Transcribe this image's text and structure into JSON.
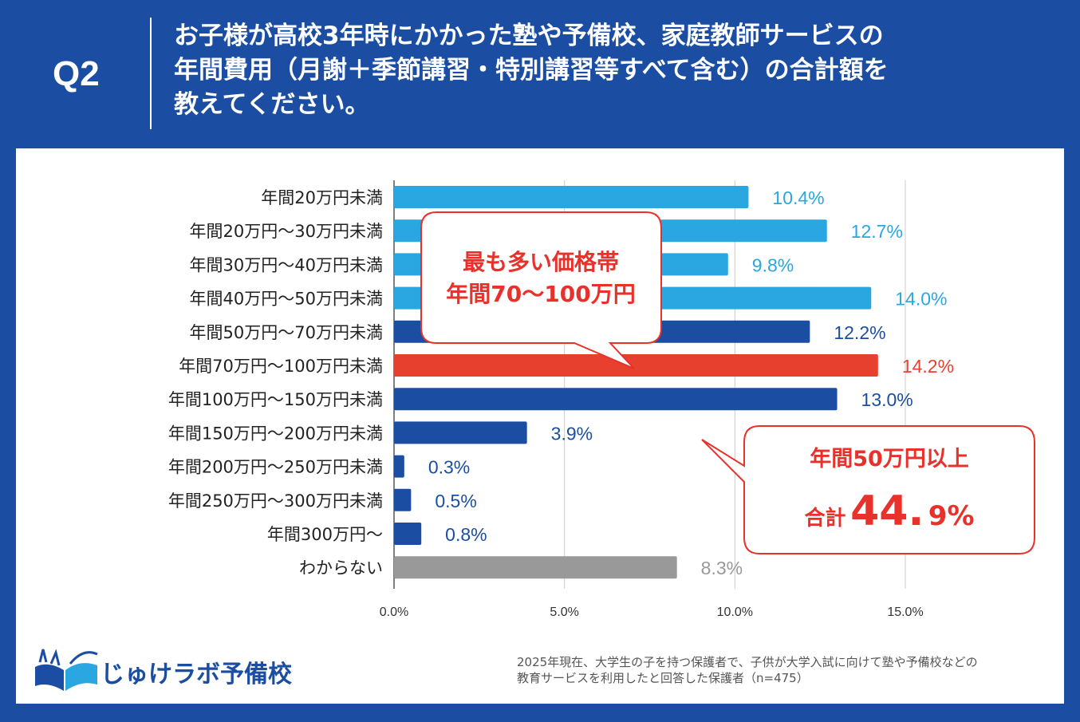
{
  "header": {
    "q_label": "Q2",
    "question_lines": [
      "お子様が高校3年時にかかった塾や予備校、家庭教師サービスの",
      "年間費用（月謝＋季節講習・特別講習等すべて含む）の合計額を",
      "教えてください。"
    ]
  },
  "colors": {
    "header_bg": "#1b4ea3",
    "light_blue": "#2aa6e0",
    "dark_blue": "#1b4ea3",
    "red": "#e8402f",
    "gray": "#999999"
  },
  "chart_data": {
    "type": "bar",
    "orientation": "horizontal",
    "categories": [
      "年間20万円未満",
      "年間20万円～30万円未満",
      "年間30万円～40万円未満",
      "年間40万円～50万円未満",
      "年間50万円～70万円未満",
      "年間70万円～100万円未満",
      "年間100万円～150万円未満",
      "年間150万円～200万円未満",
      "年間200万円～250万円未満",
      "年間250万円～300万円未満",
      "年間300万円～",
      "わからない"
    ],
    "values": [
      10.4,
      12.7,
      9.8,
      14.0,
      12.2,
      14.2,
      13.0,
      3.9,
      0.3,
      0.5,
      0.8,
      8.3
    ],
    "value_labels": [
      "10.4%",
      "12.7%",
      "9.8%",
      "14.0%",
      "12.2%",
      "14.2%",
      "13.0%",
      "3.9%",
      "0.3%",
      "0.5%",
      "0.8%",
      "8.3%"
    ],
    "bar_colors": [
      "light_blue",
      "light_blue",
      "light_blue",
      "light_blue",
      "dark_blue",
      "red",
      "dark_blue",
      "dark_blue",
      "dark_blue",
      "dark_blue",
      "dark_blue",
      "gray"
    ],
    "xlim": [
      0,
      15
    ],
    "xticks": [
      0,
      5,
      10,
      15
    ],
    "xtick_labels": [
      "0.0%",
      "5.0%",
      "10.0%",
      "15.0%"
    ],
    "grid": true
  },
  "callouts": {
    "top": {
      "line1": "最も多い価格帯",
      "line2": "年間70～100万円"
    },
    "bottom": {
      "line1": "年間50万円以上",
      "prefix": "合計",
      "big": "44.",
      "small": "9%"
    }
  },
  "logo": {
    "text": "じゅけラボ予備校",
    "icon": "open-book-icon"
  },
  "footnote": [
    "2025年現在、大学生の子を持つ保護者で、子供が大学入試に向けて塾や予備校などの",
    "教育サービスを利用したと回答した保護者（n=475）"
  ]
}
